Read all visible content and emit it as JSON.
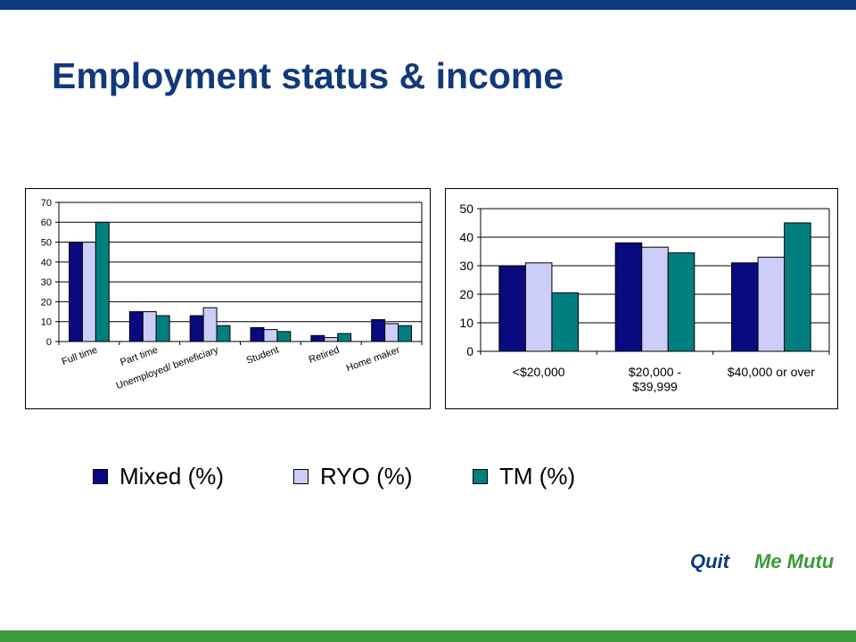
{
  "header": {
    "title": "Employment status & income"
  },
  "colors": {
    "mixed": "#0a0a80",
    "ryo": "#cccdf8",
    "tm": "#007f80",
    "top_bar": "#0b3a82",
    "bottom_bar": "#3b9a3a"
  },
  "legend": [
    {
      "label": "Mixed (%)",
      "color": "#0a0a80"
    },
    {
      "label": "RYO (%)",
      "color": "#cccdf8"
    },
    {
      "label": "TM (%)",
      "color": "#007f80"
    }
  ],
  "logos": {
    "quit": "Quit",
    "memutu": "Me Mutu"
  },
  "chart_data": [
    {
      "type": "bar",
      "categories": [
        "Full time",
        "Part time",
        "Unemployed/ beneficiary",
        "Student",
        "Retired",
        "Home maker"
      ],
      "series": [
        {
          "name": "Mixed (%)",
          "values": [
            50,
            15,
            13,
            7,
            3,
            11
          ]
        },
        {
          "name": "RYO (%)",
          "values": [
            50,
            15,
            17,
            6,
            2,
            9
          ]
        },
        {
          "name": "TM (%)",
          "values": [
            60,
            13,
            8,
            5,
            4,
            8
          ]
        }
      ],
      "ylim": [
        0,
        70
      ],
      "yticks": [
        0,
        10,
        20,
        30,
        40,
        50,
        60,
        70
      ],
      "grid": true,
      "legend": "bottom",
      "tick_label_rotation": "rotated"
    },
    {
      "type": "bar",
      "categories": [
        "<$20,000",
        "$20,000 - $39,999",
        "$40,000 or over"
      ],
      "category_lines": [
        [
          "<$20,000"
        ],
        [
          "$20,000 -",
          "$39,999"
        ],
        [
          "$40,000 or over"
        ]
      ],
      "series": [
        {
          "name": "Mixed (%)",
          "values": [
            30,
            38,
            31
          ]
        },
        {
          "name": "RYO (%)",
          "values": [
            31,
            36.5,
            33
          ]
        },
        {
          "name": "TM (%)",
          "values": [
            20.5,
            34.5,
            45
          ]
        }
      ],
      "ylim": [
        0,
        50
      ],
      "yticks": [
        0,
        10,
        20,
        30,
        40,
        50
      ],
      "grid": true,
      "legend": "bottom"
    }
  ]
}
